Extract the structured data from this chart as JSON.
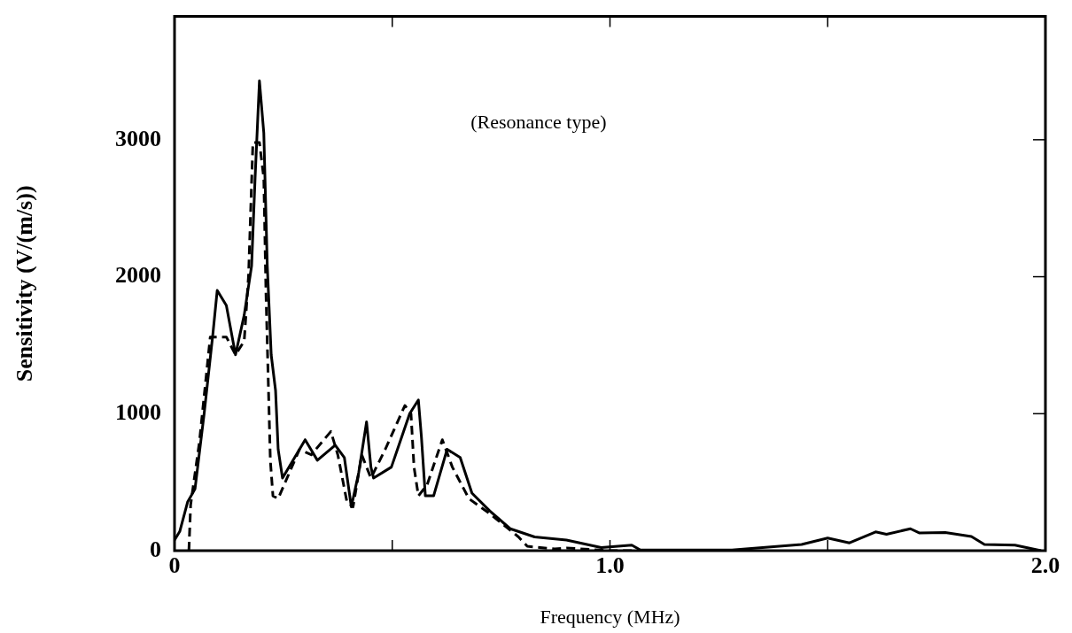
{
  "chart_data": {
    "type": "line",
    "xlabel": "Frequency (MHz)",
    "ylabel": "Sensitivity (V/(m/s))",
    "annotations": [
      "(Resonance type)"
    ],
    "xlim": [
      0,
      2.0
    ],
    "xticks": [
      {
        "value": 0,
        "label": "0"
      },
      {
        "value": 0.5,
        "label": null
      },
      {
        "value": 1.0,
        "label": "1.0"
      },
      {
        "value": 1.5,
        "label": null
      },
      {
        "value": 2.0,
        "label": "2.0"
      }
    ],
    "ylim": [
      0,
      3900
    ],
    "yticks": [
      0,
      1000,
      2000,
      3000
    ],
    "grid": false,
    "legend": false,
    "marker": "none",
    "series": [
      {
        "color": "#000000",
        "line_style": "solid",
        "x": [
          0,
          0.012,
          0.03,
          0.047,
          0.068,
          0.088,
          0.098,
          0.119,
          0.14,
          0.16,
          0.177,
          0.185,
          0.195,
          0.205,
          0.213,
          0.222,
          0.232,
          0.238,
          0.248,
          0.3,
          0.328,
          0.369,
          0.39,
          0.406,
          0.423,
          0.441,
          0.451,
          0.457,
          0.498,
          0.54,
          0.56,
          0.567,
          0.576,
          0.595,
          0.626,
          0.656,
          0.683,
          0.724,
          0.771,
          0.827,
          0.9,
          0.98,
          1.05,
          1.07,
          1.28,
          1.44,
          1.5,
          1.55,
          1.61,
          1.635,
          1.69,
          1.71,
          1.77,
          1.83,
          1.86,
          1.93,
          1.99
        ],
        "values": [
          77,
          140,
          355,
          450,
          1000,
          1580,
          1900,
          1790,
          1430,
          1720,
          2080,
          2720,
          3430,
          3050,
          2080,
          1430,
          1170,
          740,
          530,
          810,
          660,
          770,
          680,
          320,
          570,
          940,
          610,
          530,
          610,
          1000,
          1100,
          830,
          400,
          400,
          740,
          680,
          420,
          290,
          160,
          100,
          77,
          23,
          40,
          5,
          5,
          45,
          92,
          57,
          137,
          120,
          160,
          130,
          133,
          103,
          45,
          40,
          0
        ]
      },
      {
        "color": "#000000",
        "line_style": "dashed",
        "x": [
          0.033,
          0.037,
          0.057,
          0.082,
          0.119,
          0.14,
          0.16,
          0.17,
          0.18,
          0.195,
          0.205,
          0.21,
          0.22,
          0.226,
          0.238,
          0.287,
          0.314,
          0.359,
          0.375,
          0.396,
          0.41,
          0.43,
          0.451,
          0.484,
          0.529,
          0.543,
          0.55,
          0.56,
          0.58,
          0.615,
          0.638,
          0.676,
          0.724,
          0.79,
          0.81,
          0.873,
          0.9,
          1.0,
          1.3
        ],
        "values": [
          0,
          335,
          790,
          1560,
          1560,
          1430,
          1530,
          2010,
          2980,
          2980,
          2720,
          1880,
          660,
          400,
          380,
          740,
          700,
          870,
          700,
          355,
          320,
          700,
          530,
          740,
          1060,
          1000,
          610,
          400,
          480,
          810,
          610,
          380,
          270,
          100,
          32,
          13,
          20,
          0,
          0
        ]
      }
    ]
  }
}
